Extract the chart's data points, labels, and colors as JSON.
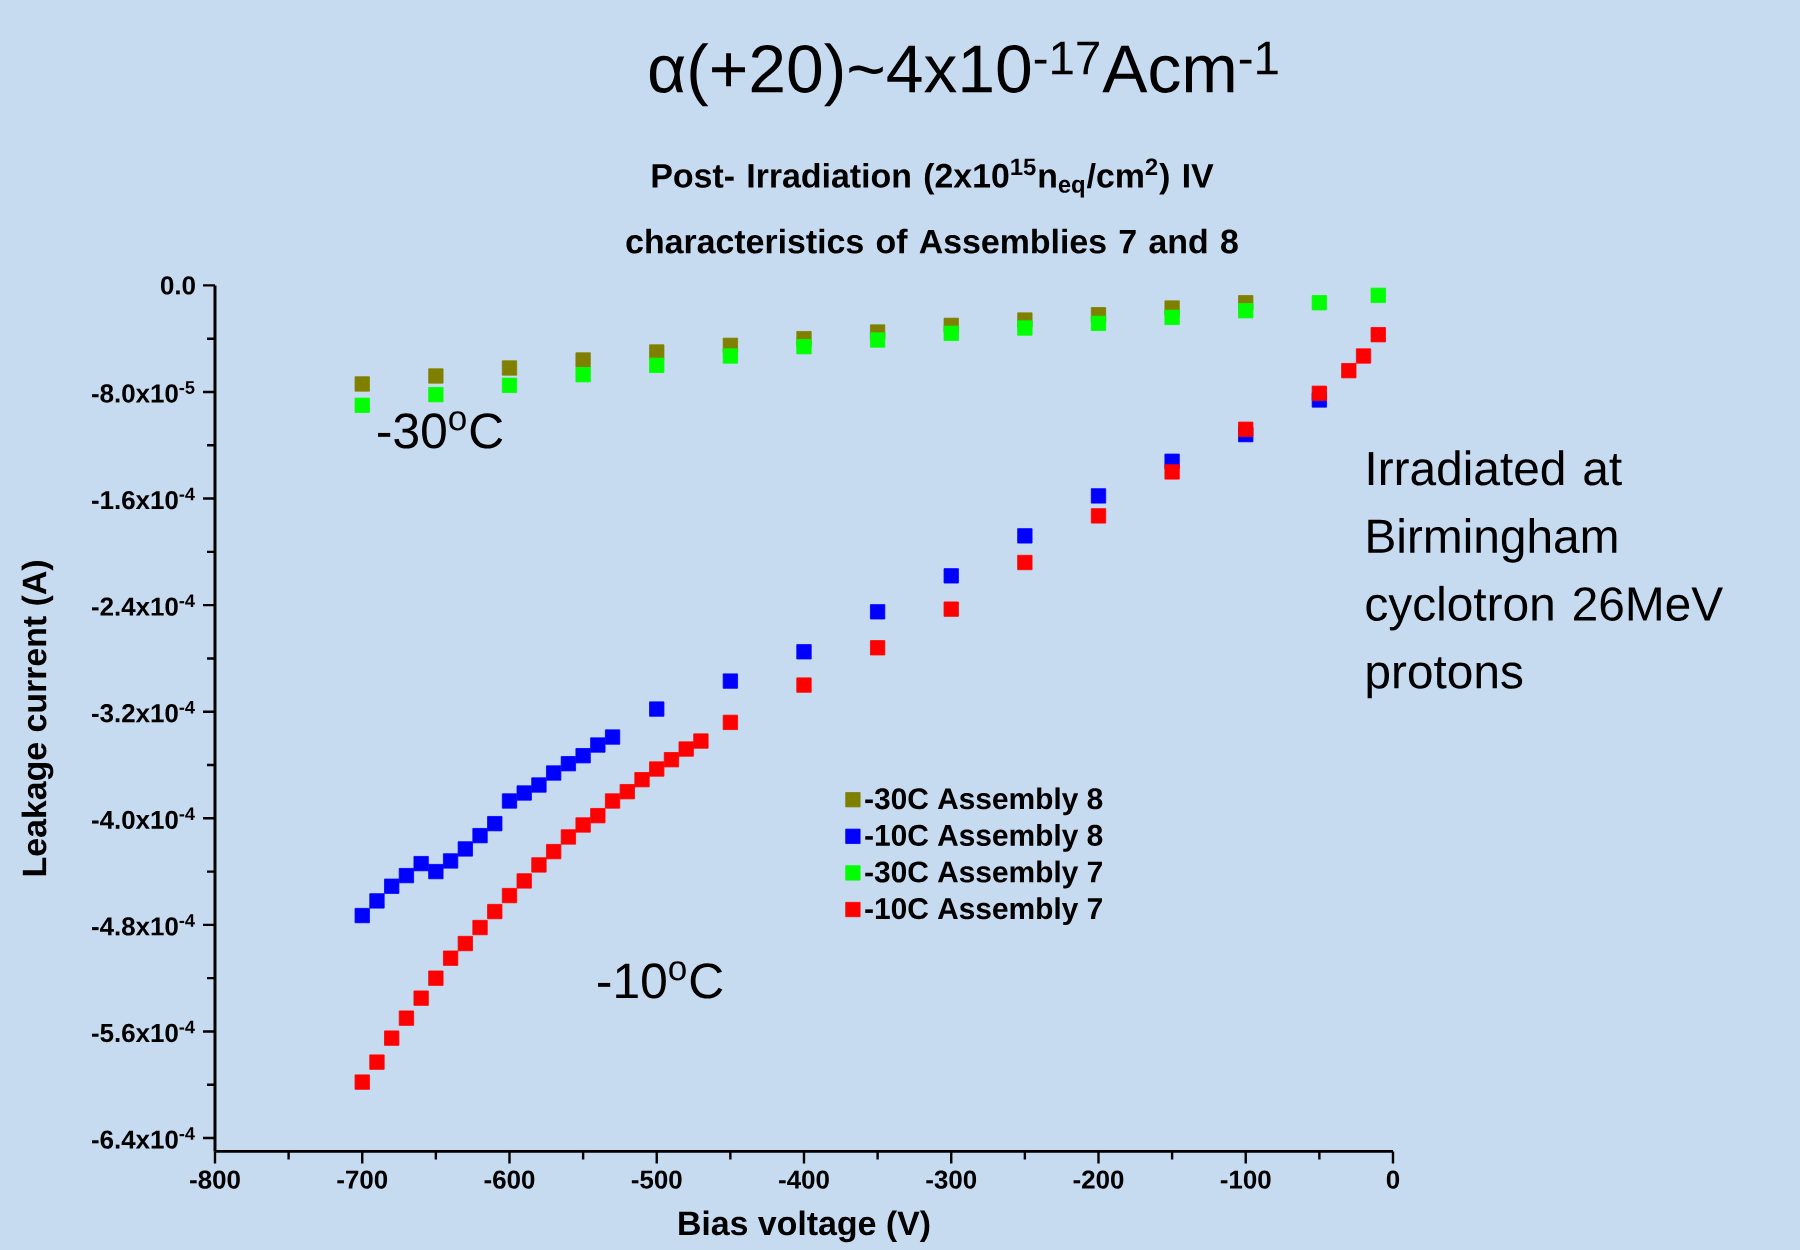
{
  "chart_data": {
    "type": "scatter",
    "title": "α(+20)~4x10$^{-17}$Acm$^{-1}$",
    "subtitle": "Post- Irradiation (2x10$^{15}$n$_{eq}$/cm$^{2}$) IV characteristics of Assemblies 7 and 8",
    "xlabel": "Bias voltage (V)",
    "ylabel": "Leakage current (A)",
    "annotations": [
      "-30$^{o}$C",
      "-10$^{o}$C",
      "Irradiated at Birmingham cyclotron 26MeV protons"
    ],
    "xlim": [
      -800,
      0
    ],
    "ylim": [
      -0.00065,
      0
    ],
    "xticks": [
      -800,
      -700,
      -600,
      -500,
      -400,
      -300,
      -200,
      -100,
      0
    ],
    "yticks": [
      {
        "value": 0,
        "label": "0.0"
      },
      {
        "value": -8e-05,
        "label": "-8.0x10$^{-5}$"
      },
      {
        "value": -0.00016,
        "label": "-1.6x10$^{-4}$"
      },
      {
        "value": -0.00024,
        "label": "-2.4x10$^{-4}$"
      },
      {
        "value": -0.00032,
        "label": "-3.2x10$^{-4}$"
      },
      {
        "value": -0.0004,
        "label": "-4.0x10$^{-4}$"
      },
      {
        "value": -0.00048,
        "label": "-4.8x10$^{-4}$"
      },
      {
        "value": -0.00056,
        "label": "-5.6x10$^{-4}$"
      },
      {
        "value": -0.00064,
        "label": "-6.4x10$^{-4}$"
      }
    ],
    "marker": "square",
    "legend": "bottom right",
    "series": [
      {
        "name": "-30C Assembly 8",
        "color": "#808000",
        "x": [
          -700,
          -650,
          -600,
          -550,
          -500,
          -450,
          -400,
          -350,
          -300,
          -250,
          -200,
          -150,
          -100
        ],
        "values": [
          -7.4e-05,
          -6.8e-05,
          -6.2e-05,
          -5.6e-05,
          -5e-05,
          -4.5e-05,
          -4e-05,
          -3.5e-05,
          -3e-05,
          -2.6e-05,
          -2.2e-05,
          -1.7e-05,
          -1.3e-05
        ]
      },
      {
        "name": "-10C Assembly 8",
        "color": "#0000ff",
        "x": [
          -700,
          -690,
          -680,
          -670,
          -660,
          -650,
          -640,
          -630,
          -620,
          -610,
          -600,
          -590,
          -580,
          -570,
          -560,
          -550,
          -540,
          -530,
          -500,
          -450,
          -400,
          -350,
          -300,
          -250,
          -200,
          -150,
          -100,
          -50
        ],
        "values": [
          -0.000473,
          -0.000462,
          -0.000451,
          -0.000443,
          -0.000434,
          -0.00044,
          -0.000432,
          -0.000423,
          -0.000413,
          -0.000404,
          -0.000387,
          -0.000381,
          -0.000375,
          -0.000366,
          -0.000359,
          -0.000353,
          -0.000345,
          -0.000339,
          -0.000318,
          -0.000297,
          -0.000275,
          -0.000245,
          -0.000218,
          -0.000188,
          -0.000158,
          -0.000132,
          -0.000112,
          -8.6e-05
        ]
      },
      {
        "name": "-30C Assembly 7",
        "color": "#00ff00",
        "x": [
          -700,
          -650,
          -600,
          -550,
          -500,
          -450,
          -400,
          -350,
          -300,
          -250,
          -200,
          -150,
          -100,
          -50,
          -10
        ],
        "values": [
          -9e-05,
          -8.2e-05,
          -7.5e-05,
          -6.7e-05,
          -6e-05,
          -5.3e-05,
          -4.6e-05,
          -4.1e-05,
          -3.6e-05,
          -3.2e-05,
          -2.85e-05,
          -2.4e-05,
          -1.9e-05,
          -1.3e-05,
          -7.5e-06
        ]
      },
      {
        "name": "-10C Assembly 7",
        "color": "#ff0000",
        "x": [
          -700,
          -690,
          -680,
          -670,
          -660,
          -650,
          -640,
          -630,
          -620,
          -610,
          -600,
          -590,
          -580,
          -570,
          -560,
          -550,
          -540,
          -530,
          -520,
          -510,
          -500,
          -490,
          -480,
          -470,
          -450,
          -400,
          -350,
          -300,
          -250,
          -200,
          -150,
          -100,
          -50,
          -30,
          -20,
          -10
        ],
        "values": [
          -0.000598,
          -0.000583,
          -0.000565,
          -0.00055,
          -0.000535,
          -0.00052,
          -0.000505,
          -0.000494,
          -0.000482,
          -0.00047,
          -0.000458,
          -0.000447,
          -0.000435,
          -0.000425,
          -0.000414,
          -0.000405,
          -0.000398,
          -0.000387,
          -0.00038,
          -0.000371,
          -0.000363,
          -0.000356,
          -0.000348,
          -0.000342,
          -0.000328,
          -0.0003,
          -0.000272,
          -0.000243,
          -0.000208,
          -0.000173,
          -0.00014,
          -0.000108,
          -8.1e-05,
          -6.4e-05,
          -5.3e-05,
          -3.7e-05
        ]
      }
    ]
  }
}
